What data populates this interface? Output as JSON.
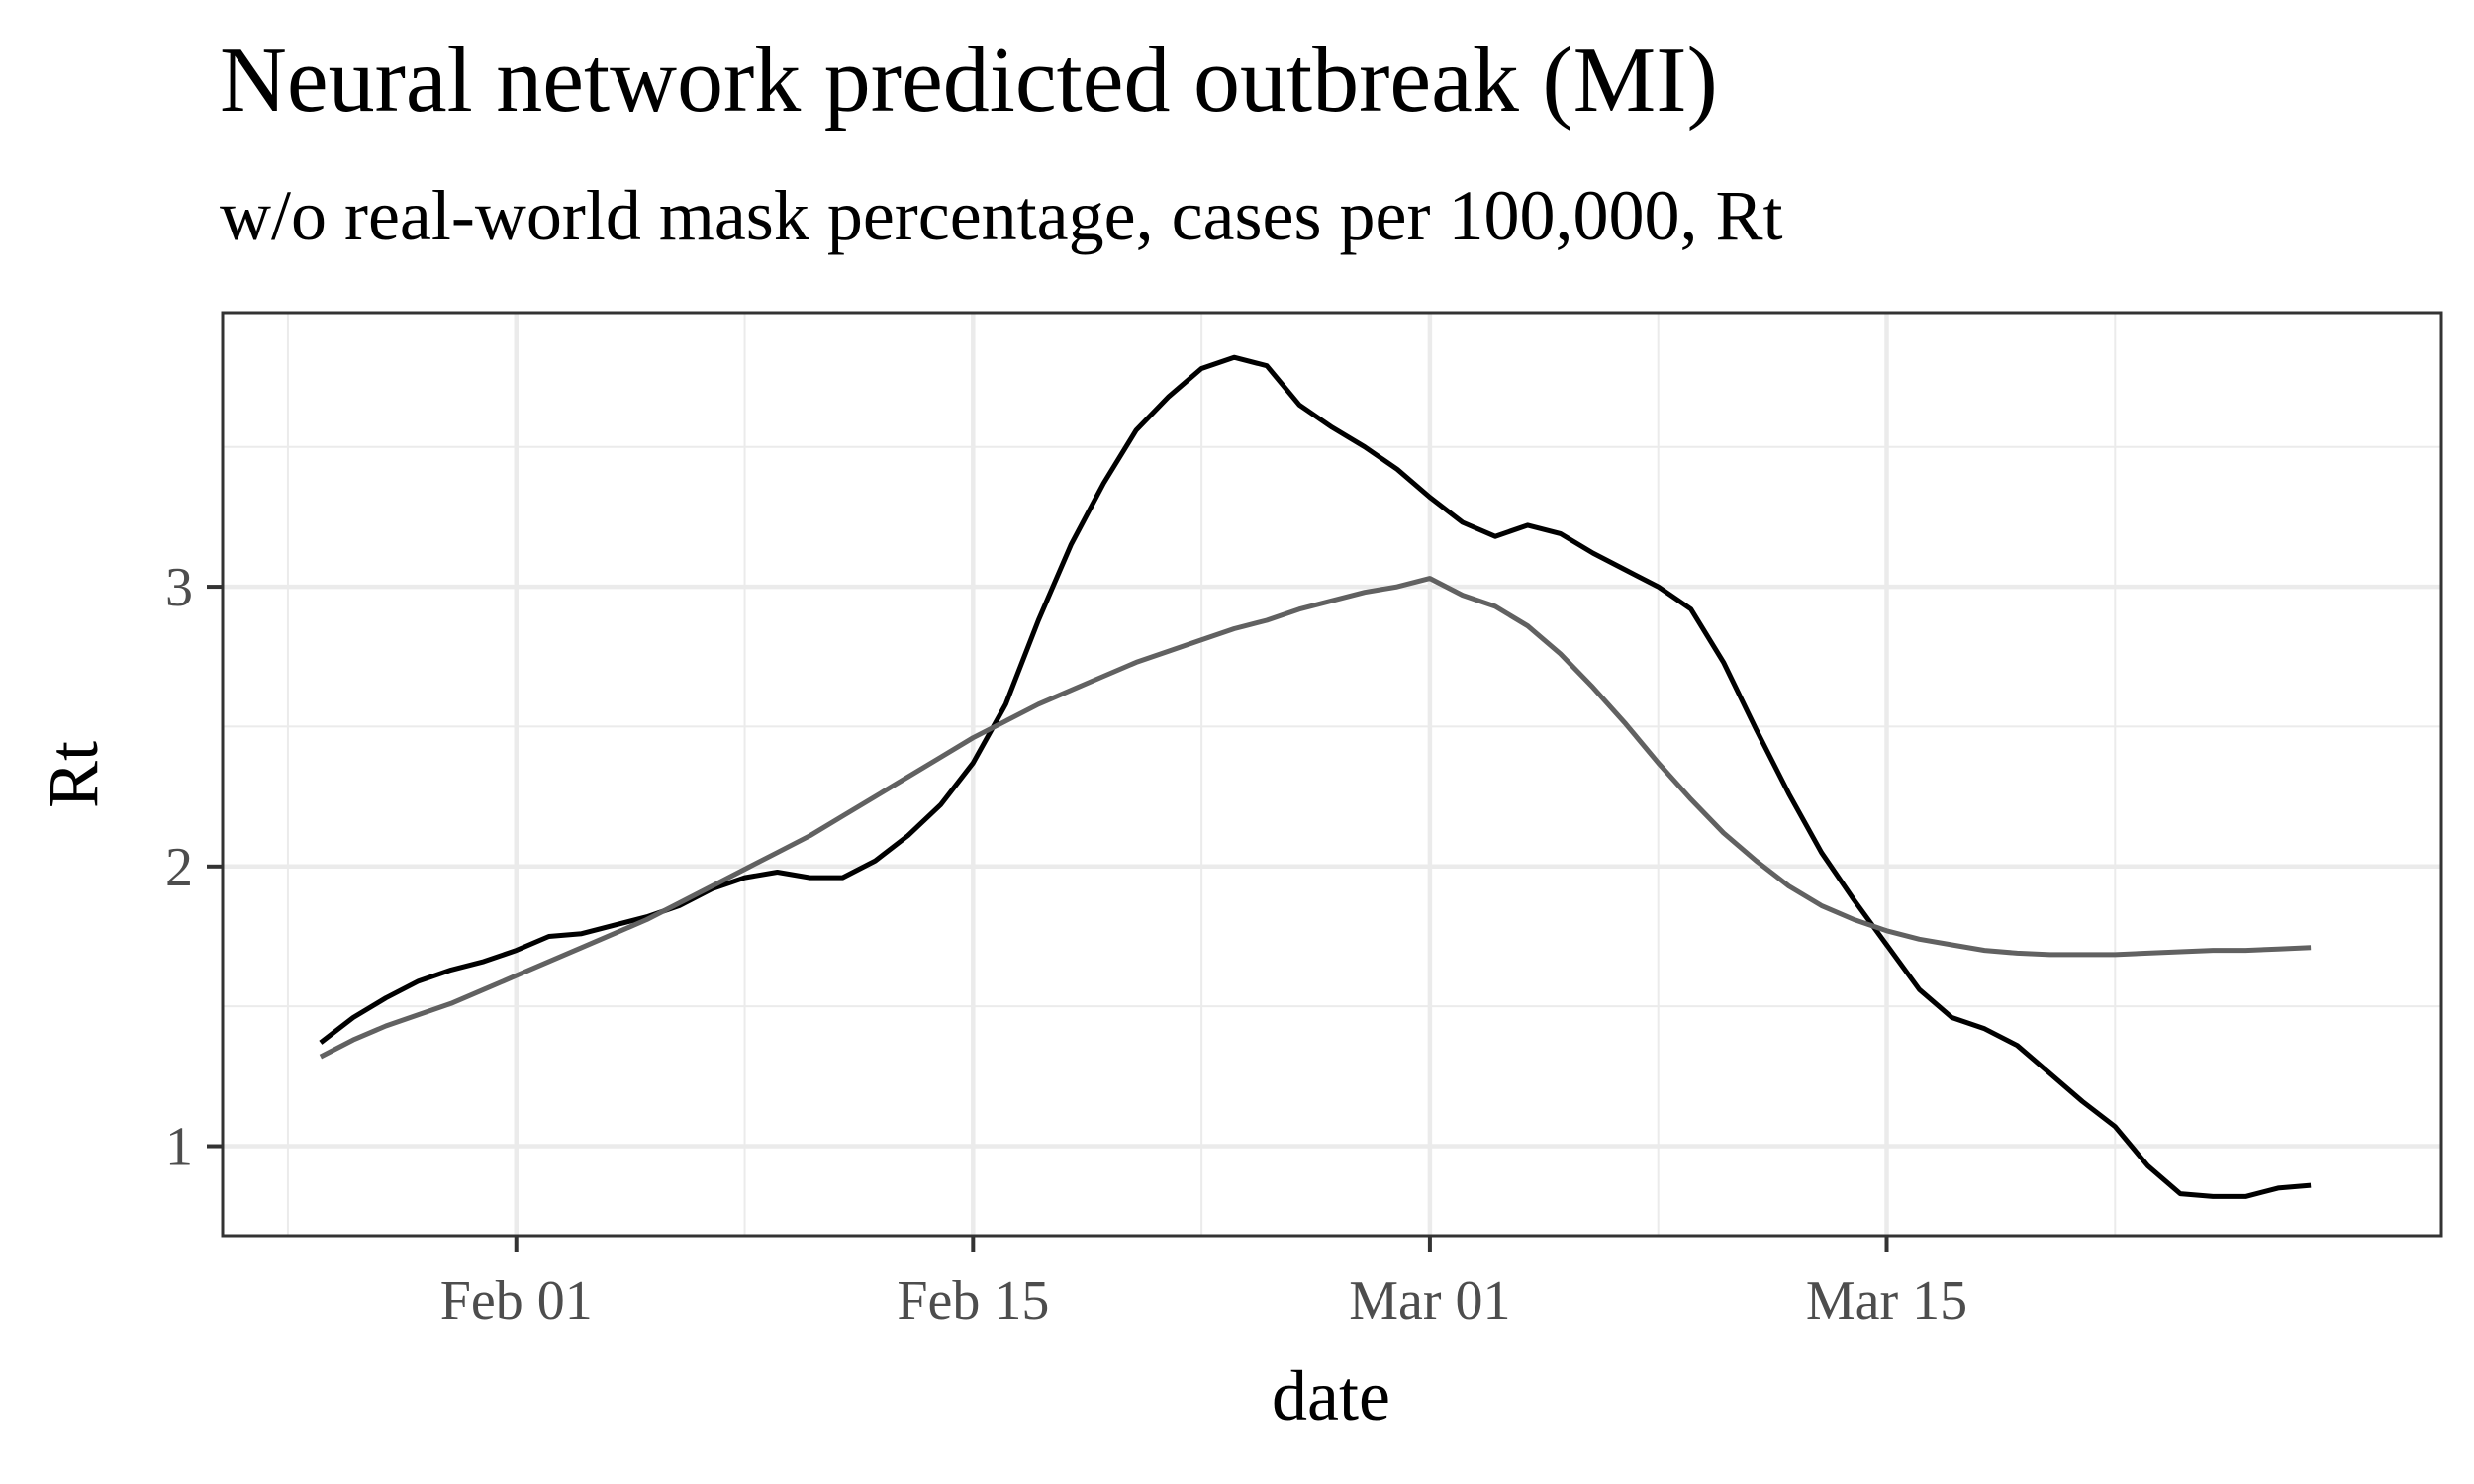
{
  "chart_data": {
    "type": "line",
    "title": "Neural network predicted outbreak (MI)",
    "subtitle": "w/o real-world mask percentage, cases per 100,000, Rt",
    "xlabel": "date",
    "ylabel": "Rt",
    "x_ticks": [
      "Feb 01",
      "Feb 15",
      "Mar 01",
      "Mar 15"
    ],
    "x_tick_values": [
      "2021-02-01",
      "2021-02-15",
      "2021-03-01",
      "2021-03-15"
    ],
    "y_ticks": [
      "1",
      "2",
      "3"
    ],
    "y_tick_values": [
      1,
      2,
      3
    ],
    "xlim": [
      "2021-01-23",
      "2021-04-01"
    ],
    "ylim": [
      0.68,
      3.98
    ],
    "grid": true,
    "legend": "none",
    "series": [
      {
        "color": "#000000",
        "points": [
          [
            "2021-01-26",
            1.37
          ],
          [
            "2021-01-27",
            1.46
          ],
          [
            "2021-01-28",
            1.53
          ],
          [
            "2021-01-29",
            1.59
          ],
          [
            "2021-01-30",
            1.63
          ],
          [
            "2021-01-31",
            1.66
          ],
          [
            "2021-02-01",
            1.7
          ],
          [
            "2021-02-02",
            1.75
          ],
          [
            "2021-02-03",
            1.76
          ],
          [
            "2021-02-04",
            1.79
          ],
          [
            "2021-02-05",
            1.82
          ],
          [
            "2021-02-06",
            1.86
          ],
          [
            "2021-02-07",
            1.92
          ],
          [
            "2021-02-08",
            1.96
          ],
          [
            "2021-02-09",
            1.98
          ],
          [
            "2021-02-10",
            1.96
          ],
          [
            "2021-02-11",
            1.96
          ],
          [
            "2021-02-12",
            2.02
          ],
          [
            "2021-02-13",
            2.11
          ],
          [
            "2021-02-14",
            2.22
          ],
          [
            "2021-02-15",
            2.37
          ],
          [
            "2021-02-16",
            2.58
          ],
          [
            "2021-02-17",
            2.88
          ],
          [
            "2021-02-18",
            3.15
          ],
          [
            "2021-02-19",
            3.37
          ],
          [
            "2021-02-20",
            3.56
          ],
          [
            "2021-02-21",
            3.68
          ],
          [
            "2021-02-22",
            3.78
          ],
          [
            "2021-02-23",
            3.82
          ],
          [
            "2021-02-24",
            3.79
          ],
          [
            "2021-02-25",
            3.65
          ],
          [
            "2021-02-26",
            3.57
          ],
          [
            "2021-02-27",
            3.5
          ],
          [
            "2021-02-28",
            3.42
          ],
          [
            "2021-03-01",
            3.32
          ],
          [
            "2021-03-02",
            3.23
          ],
          [
            "2021-03-03",
            3.18
          ],
          [
            "2021-03-04",
            3.22
          ],
          [
            "2021-03-05",
            3.19
          ],
          [
            "2021-03-06",
            3.12
          ],
          [
            "2021-03-07",
            3.06
          ],
          [
            "2021-03-08",
            3.0
          ],
          [
            "2021-03-09",
            2.92
          ],
          [
            "2021-03-10",
            2.73
          ],
          [
            "2021-03-11",
            2.49
          ],
          [
            "2021-03-12",
            2.26
          ],
          [
            "2021-03-13",
            2.05
          ],
          [
            "2021-03-14",
            1.88
          ],
          [
            "2021-03-15",
            1.72
          ],
          [
            "2021-03-16",
            1.56
          ],
          [
            "2021-03-17",
            1.46
          ],
          [
            "2021-03-18",
            1.42
          ],
          [
            "2021-03-19",
            1.36
          ],
          [
            "2021-03-20",
            1.26
          ],
          [
            "2021-03-21",
            1.16
          ],
          [
            "2021-03-22",
            1.07
          ],
          [
            "2021-03-23",
            0.93
          ],
          [
            "2021-03-24",
            0.83
          ],
          [
            "2021-03-25",
            0.82
          ],
          [
            "2021-03-26",
            0.82
          ],
          [
            "2021-03-27",
            0.85
          ],
          [
            "2021-03-28",
            0.86
          ]
        ]
      },
      {
        "color": "#616161",
        "points": [
          [
            "2021-01-26",
            1.32
          ],
          [
            "2021-01-27",
            1.38
          ],
          [
            "2021-01-28",
            1.43
          ],
          [
            "2021-01-29",
            1.47
          ],
          [
            "2021-01-30",
            1.51
          ],
          [
            "2021-01-31",
            1.56
          ],
          [
            "2021-02-01",
            1.61
          ],
          [
            "2021-02-02",
            1.66
          ],
          [
            "2021-02-03",
            1.71
          ],
          [
            "2021-02-04",
            1.76
          ],
          [
            "2021-02-05",
            1.81
          ],
          [
            "2021-02-06",
            1.87
          ],
          [
            "2021-02-07",
            1.93
          ],
          [
            "2021-02-08",
            1.99
          ],
          [
            "2021-02-09",
            2.05
          ],
          [
            "2021-02-10",
            2.11
          ],
          [
            "2021-02-11",
            2.18
          ],
          [
            "2021-02-12",
            2.25
          ],
          [
            "2021-02-13",
            2.32
          ],
          [
            "2021-02-14",
            2.39
          ],
          [
            "2021-02-15",
            2.46
          ],
          [
            "2021-02-16",
            2.52
          ],
          [
            "2021-02-17",
            2.58
          ],
          [
            "2021-02-18",
            2.63
          ],
          [
            "2021-02-19",
            2.68
          ],
          [
            "2021-02-20",
            2.73
          ],
          [
            "2021-02-21",
            2.77
          ],
          [
            "2021-02-22",
            2.81
          ],
          [
            "2021-02-23",
            2.85
          ],
          [
            "2021-02-24",
            2.88
          ],
          [
            "2021-02-25",
            2.92
          ],
          [
            "2021-02-26",
            2.95
          ],
          [
            "2021-02-27",
            2.98
          ],
          [
            "2021-02-28",
            3.0
          ],
          [
            "2021-03-01",
            3.03
          ],
          [
            "2021-03-02",
            2.97
          ],
          [
            "2021-03-03",
            2.93
          ],
          [
            "2021-03-04",
            2.86
          ],
          [
            "2021-03-05",
            2.76
          ],
          [
            "2021-03-06",
            2.64
          ],
          [
            "2021-03-07",
            2.51
          ],
          [
            "2021-03-08",
            2.37
          ],
          [
            "2021-03-09",
            2.24
          ],
          [
            "2021-03-10",
            2.12
          ],
          [
            "2021-03-11",
            2.02
          ],
          [
            "2021-03-12",
            1.93
          ],
          [
            "2021-03-13",
            1.86
          ],
          [
            "2021-03-14",
            1.81
          ],
          [
            "2021-03-15",
            1.77
          ],
          [
            "2021-03-16",
            1.74
          ],
          [
            "2021-03-17",
            1.72
          ],
          [
            "2021-03-18",
            1.7
          ],
          [
            "2021-03-19",
            1.69
          ],
          [
            "2021-03-20",
            1.685
          ],
          [
            "2021-03-21",
            1.685
          ],
          [
            "2021-03-22",
            1.685
          ],
          [
            "2021-03-23",
            1.69
          ],
          [
            "2021-03-24",
            1.695
          ],
          [
            "2021-03-25",
            1.7
          ],
          [
            "2021-03-26",
            1.7
          ],
          [
            "2021-03-27",
            1.705
          ],
          [
            "2021-03-28",
            1.71
          ]
        ]
      }
    ]
  }
}
